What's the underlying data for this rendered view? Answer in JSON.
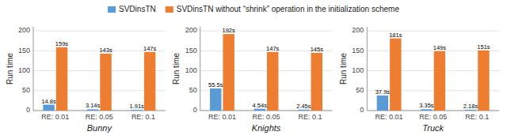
{
  "chart_data": [
    {
      "type": "bar",
      "xlabel": "Bunny",
      "ylabel": "Run time",
      "categories": [
        "RE: 0.01",
        "RE: 0.05",
        "RE: 0.1"
      ],
      "series": [
        {
          "name": "SVDinsTN",
          "color": "#5B9BD5",
          "values": [
            14.8,
            3.14,
            1.91
          ],
          "value_labels": [
            "14.8s",
            "3.14s",
            "1.91s"
          ]
        },
        {
          "name": "SVDinsTN without “shrink” operation in the initialization scheme",
          "color": "#ED7D31",
          "values": [
            159,
            143,
            147
          ],
          "value_labels": [
            "159s",
            "143s",
            "147s"
          ]
        }
      ],
      "ylim": [
        0,
        210
      ],
      "yticks": [
        0,
        50,
        100,
        150,
        200
      ],
      "grid": true,
      "data_labels": true,
      "legend": "top"
    },
    {
      "type": "bar",
      "xlabel": "Knights",
      "ylabel": "Run time",
      "categories": [
        "RE: 0.01",
        "RE: 0.05",
        "RE: 0.1"
      ],
      "series": [
        {
          "name": "SVDinsTN",
          "color": "#5B9BD5",
          "values": [
            55.5,
            4.54,
            2.45
          ],
          "value_labels": [
            "55.5s",
            "4.54s",
            "2.45s"
          ]
        },
        {
          "name": "SVDinsTN without “shrink” operation in the initialization scheme",
          "color": "#ED7D31",
          "values": [
            192,
            147,
            145
          ],
          "value_labels": [
            "192s",
            "147s",
            "145s"
          ]
        }
      ],
      "ylim": [
        0,
        210
      ],
      "yticks": [
        0,
        50,
        100,
        150,
        200
      ],
      "grid": true,
      "data_labels": true
    },
    {
      "type": "bar",
      "xlabel": "Truck",
      "ylabel": "Run time",
      "categories": [
        "RE: 0.01",
        "RE: 0.05",
        "RE: 0.1"
      ],
      "series": [
        {
          "name": "SVDinsTN",
          "color": "#5B9BD5",
          "values": [
            37.9,
            3.35,
            2.18
          ],
          "value_labels": [
            "37.9s",
            "3.35s",
            "2.18s"
          ]
        },
        {
          "name": "SVDinsTN without “shrink” operation in the initialization scheme",
          "color": "#ED7D31",
          "values": [
            181,
            149,
            151
          ],
          "value_labels": [
            "181s",
            "149s",
            "151s"
          ]
        }
      ],
      "ylim": [
        0,
        210
      ],
      "yticks": [
        0,
        50,
        100,
        150,
        200
      ],
      "grid": true,
      "data_labels": true
    }
  ]
}
